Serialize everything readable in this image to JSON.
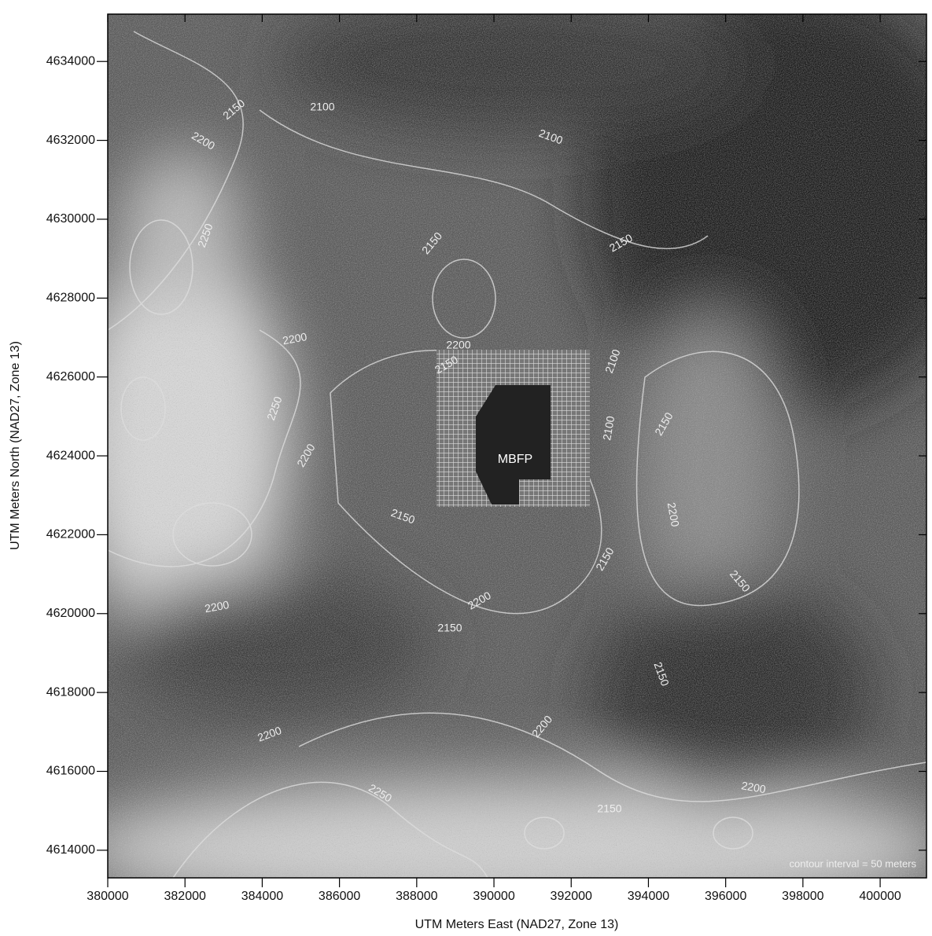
{
  "chart_data": {
    "type": "contour",
    "xlabel": "UTM Meters East (NAD27, Zone 13)",
    "ylabel": "UTM Meters North (NAD27, Zone 13)",
    "xlim": [
      380000,
      401200
    ],
    "ylim": [
      4613300,
      4635200
    ],
    "xticks": [
      380000,
      382000,
      384000,
      386000,
      388000,
      390000,
      392000,
      394000,
      396000,
      398000,
      400000
    ],
    "yticks": [
      4614000,
      4616000,
      4618000,
      4620000,
      4622000,
      4624000,
      4626000,
      4628000,
      4630000,
      4632000,
      4634000
    ],
    "contour_labels": [
      2150,
      2100,
      2100,
      2200,
      2250,
      2150,
      2150,
      2200,
      2200,
      2150,
      2100,
      2250,
      2200,
      2150,
      2150,
      2200,
      2150,
      2200,
      2150,
      2150,
      2200,
      2150,
      2200,
      2250,
      2200,
      2150,
      2200,
      2100
    ],
    "annotations": [
      "MBFP",
      "contour interval = 50 meters"
    ]
  }
}
